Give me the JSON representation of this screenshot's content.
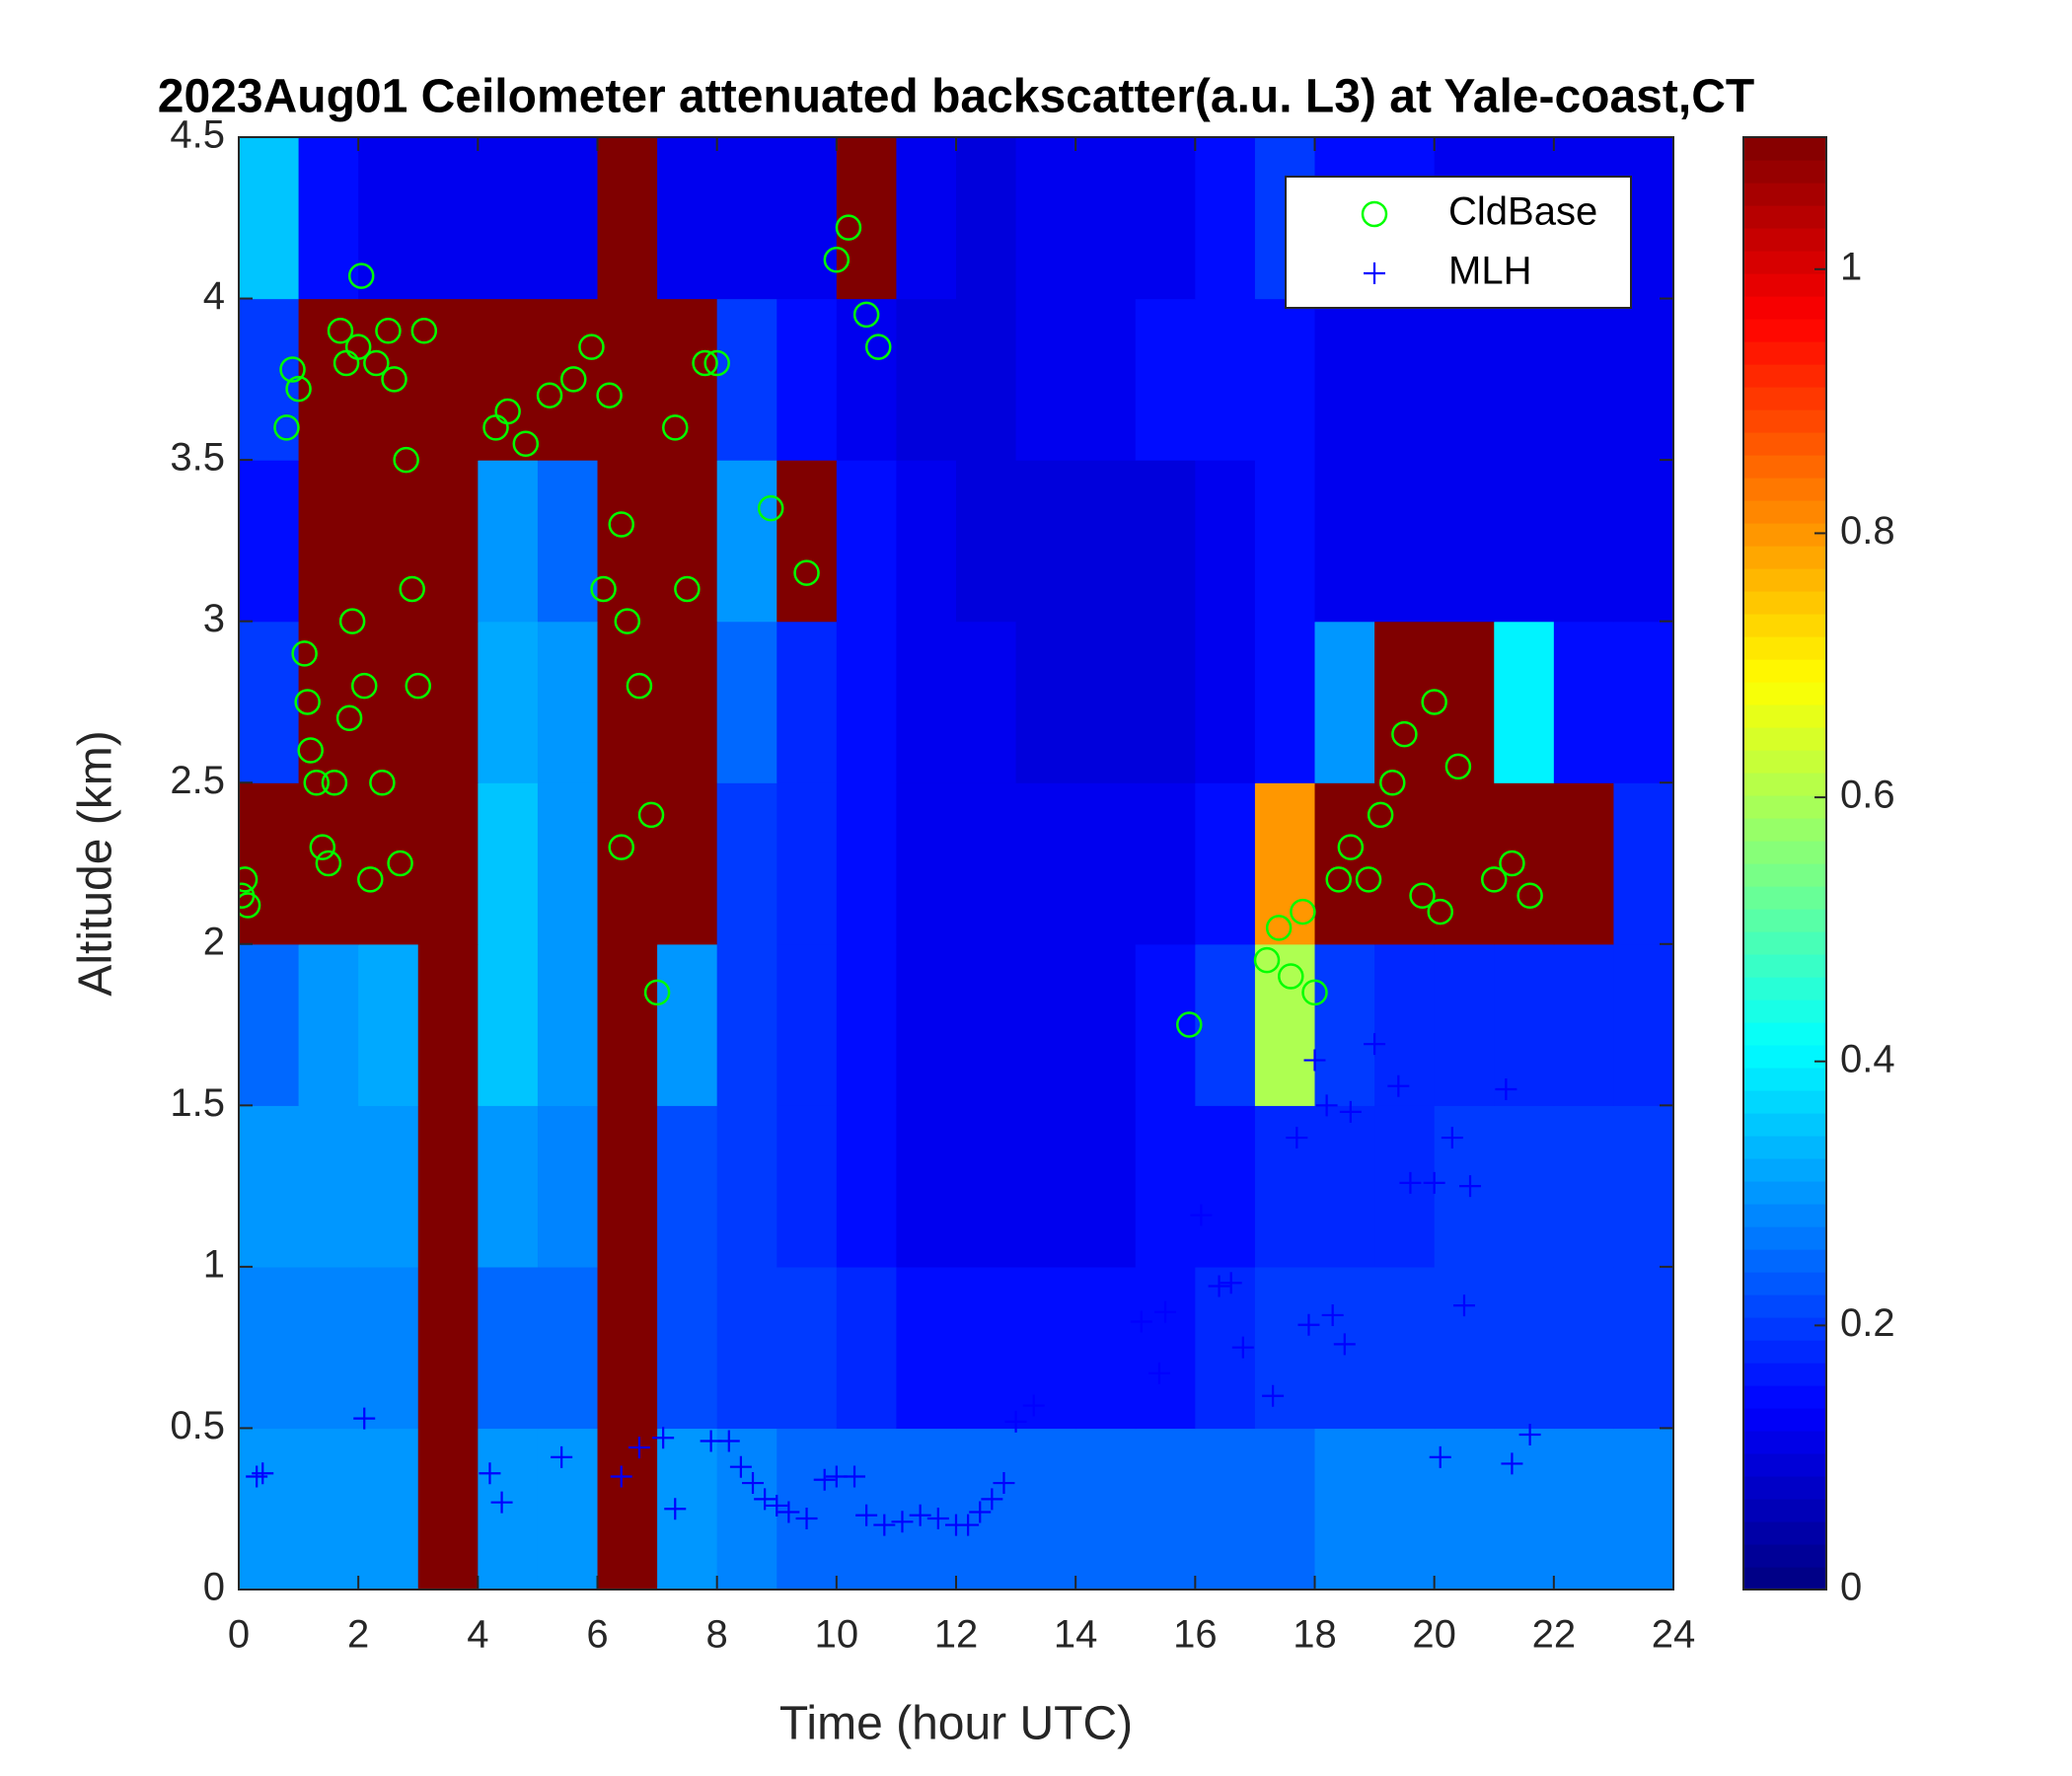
{
  "chart_data": {
    "type": "heatmap",
    "title": "2023Aug01 Ceilometer attenuated backscatter(a.u. L3) at Yale-coast,CT",
    "xlabel": "Time (hour UTC)",
    "ylabel": "Altitude (km)",
    "xlim": [
      0,
      24
    ],
    "ylim": [
      0,
      4.5
    ],
    "xticks": [
      0,
      2,
      4,
      6,
      8,
      10,
      12,
      14,
      16,
      18,
      20,
      22,
      24
    ],
    "yticks": [
      0,
      0.5,
      1,
      1.5,
      2,
      2.5,
      3,
      3.5,
      4,
      4.5
    ],
    "colormap": "jet",
    "clim": [
      0,
      1.1
    ],
    "cticks": [
      0,
      0.2,
      0.4,
      0.6,
      0.8,
      1
    ],
    "xbins": [
      0,
      1,
      2,
      3,
      4,
      5,
      6,
      7,
      8,
      9,
      10,
      11,
      12,
      13,
      14,
      15,
      16,
      17,
      18,
      19,
      20,
      21,
      22,
      23,
      24
    ],
    "ybins": [
      0,
      0.5,
      1,
      1.5,
      2,
      2.5,
      3,
      3.5,
      4,
      4.5
    ],
    "z": [
      [
        0.3,
        0.3,
        0.3,
        1.1,
        0.3,
        0.3,
        1.1,
        0.3,
        0.28,
        0.25,
        0.25,
        0.25,
        0.25,
        0.25,
        0.25,
        0.25,
        0.25,
        0.25,
        0.28,
        0.28,
        0.28,
        0.28,
        0.28,
        0.28
      ],
      [
        0.28,
        0.28,
        0.28,
        1.1,
        0.25,
        0.25,
        1.1,
        0.22,
        0.2,
        0.2,
        0.18,
        0.15,
        0.15,
        0.15,
        0.15,
        0.15,
        0.18,
        0.2,
        0.2,
        0.2,
        0.2,
        0.2,
        0.2,
        0.2
      ],
      [
        0.3,
        0.3,
        0.3,
        1.1,
        0.3,
        0.28,
        1.1,
        0.22,
        0.2,
        0.18,
        0.15,
        0.12,
        0.12,
        0.12,
        0.12,
        0.15,
        0.15,
        0.18,
        0.18,
        0.18,
        0.2,
        0.2,
        0.2,
        0.2
      ],
      [
        0.25,
        0.3,
        0.32,
        1.1,
        0.35,
        0.3,
        1.1,
        0.3,
        0.2,
        0.18,
        0.15,
        0.12,
        0.12,
        0.12,
        0.12,
        0.15,
        0.2,
        0.6,
        0.2,
        0.18,
        0.18,
        0.18,
        0.18,
        0.18
      ],
      [
        1.1,
        1.1,
        1.1,
        1.1,
        0.35,
        0.3,
        1.1,
        1.1,
        0.2,
        0.18,
        0.15,
        0.12,
        0.12,
        0.12,
        0.12,
        0.12,
        0.15,
        0.8,
        1.1,
        1.1,
        1.1,
        1.1,
        1.1,
        0.18
      ],
      [
        0.2,
        1.1,
        1.1,
        1.1,
        0.32,
        0.3,
        1.1,
        1.1,
        0.25,
        0.18,
        0.15,
        0.12,
        0.12,
        0.1,
        0.1,
        0.1,
        0.12,
        0.15,
        0.3,
        1.1,
        1.1,
        0.4,
        0.15,
        0.15
      ],
      [
        0.15,
        1.1,
        1.1,
        1.1,
        0.3,
        0.25,
        1.1,
        1.1,
        0.3,
        1.1,
        0.15,
        0.12,
        0.1,
        0.1,
        0.1,
        0.1,
        0.12,
        0.15,
        0.12,
        0.12,
        0.12,
        0.12,
        0.12,
        0.12
      ],
      [
        0.2,
        1.1,
        1.1,
        1.1,
        1.1,
        1.1,
        1.1,
        1.1,
        0.2,
        0.15,
        0.12,
        0.1,
        0.1,
        0.12,
        0.12,
        0.15,
        0.15,
        0.15,
        0.12,
        0.12,
        0.12,
        0.12,
        0.12,
        0.12
      ],
      [
        0.35,
        0.15,
        0.12,
        0.12,
        0.12,
        0.12,
        1.1,
        0.12,
        0.12,
        0.12,
        1.1,
        0.12,
        0.1,
        0.12,
        0.12,
        0.12,
        0.15,
        0.2,
        0.15,
        0.15,
        0.12,
        0.12,
        0.12,
        0.12
      ]
    ],
    "series": [
      {
        "name": "CldBase",
        "color": "#00ff00",
        "marker": "circle",
        "x": [
          0.05,
          0.1,
          0.15,
          0.8,
          0.9,
          1.0,
          1.1,
          1.15,
          1.2,
          1.3,
          1.4,
          1.5,
          1.6,
          1.7,
          1.8,
          1.85,
          1.9,
          2.0,
          2.05,
          2.1,
          2.2,
          2.3,
          2.4,
          2.5,
          2.6,
          2.7,
          2.8,
          2.9,
          3.0,
          3.1,
          4.3,
          4.5,
          4.8,
          5.2,
          5.6,
          5.9,
          6.1,
          6.2,
          6.4,
          6.4,
          6.5,
          6.7,
          6.9,
          7.0,
          7.3,
          7.5,
          7.8,
          8.0,
          8.9,
          9.5,
          10.0,
          10.2,
          10.5,
          10.7,
          15.9,
          17.2,
          17.4,
          17.6,
          17.8,
          18.0,
          18.4,
          18.6,
          18.9,
          19.1,
          19.3,
          19.5,
          19.8,
          20.0,
          20.1,
          20.4,
          21.0,
          21.3,
          21.6
        ],
        "y": [
          2.15,
          2.2,
          2.12,
          3.6,
          3.78,
          3.72,
          2.9,
          2.75,
          2.6,
          2.5,
          2.3,
          2.25,
          2.5,
          3.9,
          3.8,
          2.7,
          3.0,
          3.85,
          4.07,
          2.8,
          2.2,
          3.8,
          2.5,
          3.9,
          3.75,
          2.25,
          3.5,
          3.1,
          2.8,
          3.9,
          3.6,
          3.65,
          3.55,
          3.7,
          3.75,
          3.85,
          3.1,
          3.7,
          3.3,
          2.3,
          3.0,
          2.8,
          2.4,
          1.85,
          3.6,
          3.1,
          3.8,
          3.8,
          3.35,
          3.15,
          4.12,
          4.22,
          3.95,
          3.85,
          1.75,
          1.95,
          2.05,
          1.9,
          2.1,
          1.85,
          2.2,
          2.3,
          2.2,
          2.4,
          2.5,
          2.65,
          2.15,
          2.75,
          2.1,
          2.55,
          2.2,
          2.25,
          2.15
        ]
      },
      {
        "name": "MLH",
        "color": "#0000ff",
        "marker": "plus",
        "x": [
          0.3,
          0.4,
          2.1,
          4.2,
          4.4,
          5.4,
          6.4,
          6.7,
          7.1,
          7.3,
          7.9,
          8.2,
          8.4,
          8.6,
          8.8,
          9.0,
          9.2,
          9.5,
          9.8,
          10.0,
          10.3,
          10.5,
          10.8,
          11.1,
          11.4,
          11.7,
          12.0,
          12.2,
          12.4,
          12.6,
          12.8,
          13.0,
          13.3,
          15.1,
          15.4,
          15.5,
          16.1,
          16.4,
          16.6,
          16.8,
          17.3,
          17.7,
          17.9,
          18.0,
          18.2,
          18.3,
          18.5,
          18.6,
          19.0,
          19.4,
          19.6,
          20.0,
          20.1,
          20.3,
          20.5,
          20.6,
          21.2,
          21.3,
          21.6
        ],
        "y": [
          0.35,
          0.36,
          0.53,
          0.36,
          0.27,
          0.41,
          0.35,
          0.44,
          0.47,
          0.25,
          0.46,
          0.46,
          0.38,
          0.33,
          0.28,
          0.26,
          0.24,
          0.22,
          0.34,
          0.35,
          0.35,
          0.23,
          0.2,
          0.21,
          0.23,
          0.22,
          0.2,
          0.2,
          0.24,
          0.28,
          0.33,
          0.52,
          0.57,
          0.83,
          0.67,
          0.86,
          1.16,
          0.94,
          0.95,
          0.75,
          0.6,
          1.4,
          0.82,
          1.64,
          1.5,
          0.85,
          0.76,
          1.48,
          1.69,
          1.56,
          1.26,
          1.26,
          0.41,
          1.4,
          0.88,
          1.25,
          1.55,
          0.39,
          0.48
        ]
      }
    ],
    "legend": "upper right"
  }
}
